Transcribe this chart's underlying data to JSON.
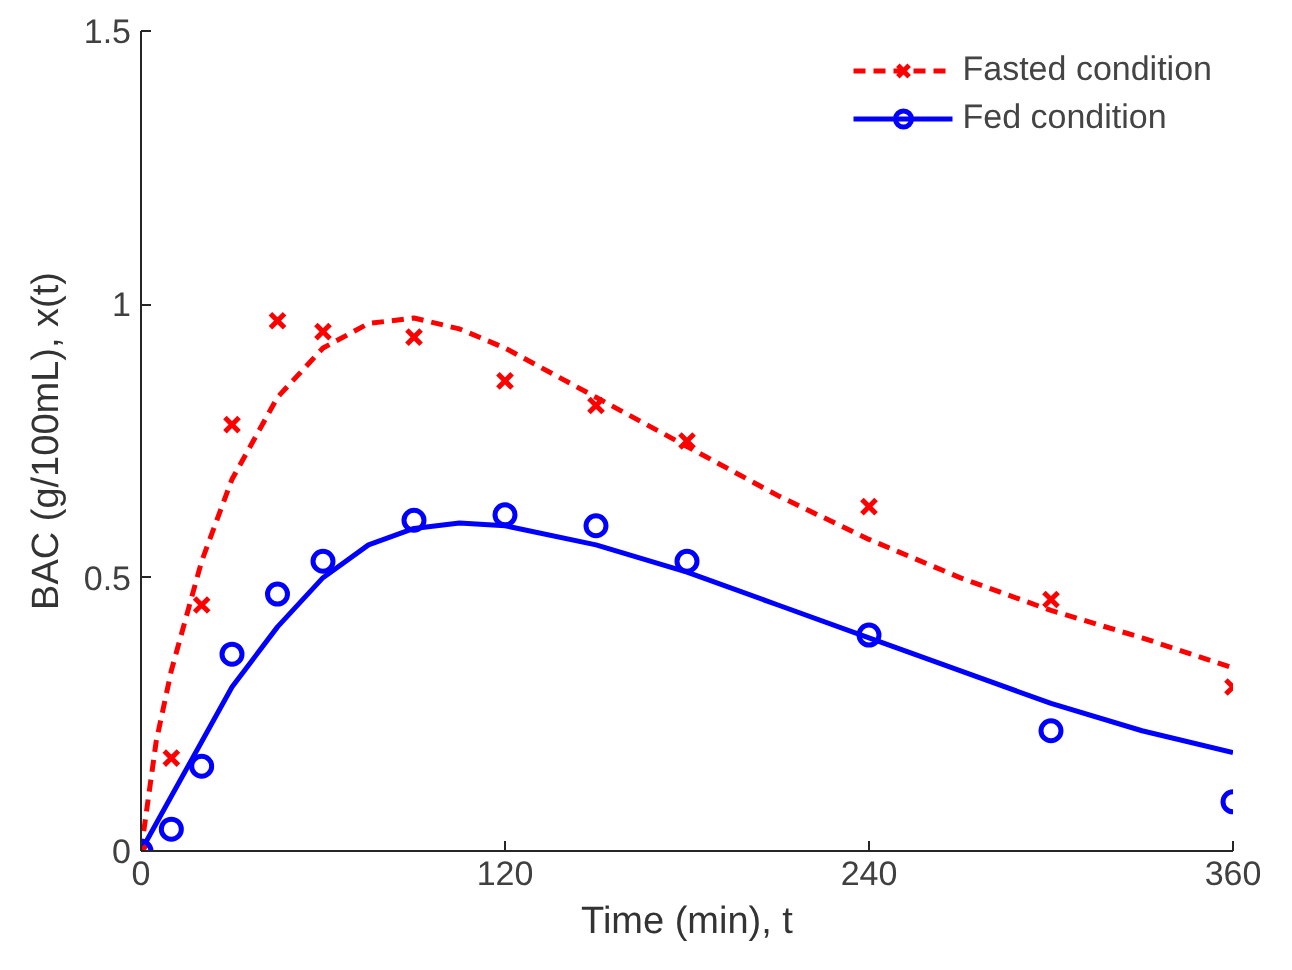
{
  "chart_data": {
    "type": "line",
    "xlabel": "Time (min), t",
    "ylabel": "BAC (g/100mL), x(t)",
    "xlim": [
      0,
      360
    ],
    "ylim": [
      0,
      1.5
    ],
    "xticks": [
      0,
      120,
      240,
      360
    ],
    "yticks": [
      0,
      0.5,
      1,
      1.5
    ],
    "grid": false,
    "legend": "top right",
    "series": [
      {
        "name": "Fasted condition",
        "color": "#ff0000",
        "line_style": "dashed",
        "x": [
          0,
          5,
          10,
          20,
          30,
          45,
          60,
          75,
          90,
          105,
          120,
          150,
          180,
          210,
          240,
          270,
          300,
          330,
          360
        ],
        "values": [
          0,
          0.2,
          0.33,
          0.53,
          0.68,
          0.83,
          0.92,
          0.965,
          0.975,
          0.955,
          0.92,
          0.83,
          0.74,
          0.65,
          0.57,
          0.5,
          0.44,
          0.39,
          0.335
        ]
      },
      {
        "name": "Fed condition",
        "color": "#0000ff",
        "line_style": "solid",
        "x": [
          0,
          10,
          20,
          30,
          45,
          60,
          75,
          90,
          105,
          120,
          150,
          180,
          210,
          240,
          270,
          300,
          330,
          360
        ],
        "values": [
          0,
          0.1,
          0.2,
          0.3,
          0.41,
          0.5,
          0.56,
          0.59,
          0.6,
          0.595,
          0.56,
          0.51,
          0.45,
          0.39,
          0.33,
          0.27,
          0.22,
          0.18
        ]
      },
      {
        "type": "scatter",
        "color": "#ff0000",
        "marker": "cross",
        "x": [
          0,
          10,
          20,
          30,
          45,
          60,
          90,
          120,
          150,
          180,
          240,
          300,
          360
        ],
        "values": [
          0,
          0.17,
          0.45,
          0.78,
          0.97,
          0.95,
          0.94,
          0.86,
          0.815,
          0.75,
          0.63,
          0.46,
          0.3
        ]
      },
      {
        "type": "scatter",
        "color": "#0000ff",
        "marker": "circle",
        "x": [
          0,
          10,
          20,
          30,
          45,
          60,
          90,
          120,
          150,
          180,
          240,
          300,
          360
        ],
        "values": [
          0,
          0.04,
          0.155,
          0.36,
          0.47,
          0.53,
          0.605,
          0.615,
          0.595,
          0.53,
          0.395,
          0.22,
          0.09
        ]
      }
    ]
  }
}
